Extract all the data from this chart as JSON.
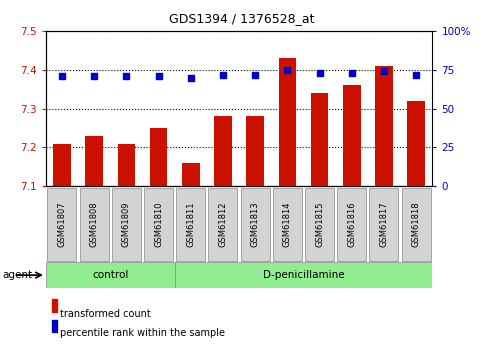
{
  "title": "GDS1394 / 1376528_at",
  "samples": [
    "GSM61807",
    "GSM61808",
    "GSM61809",
    "GSM61810",
    "GSM61811",
    "GSM61812",
    "GSM61813",
    "GSM61814",
    "GSM61815",
    "GSM61816",
    "GSM61817",
    "GSM61818"
  ],
  "bar_values": [
    7.21,
    7.23,
    7.21,
    7.25,
    7.16,
    7.28,
    7.28,
    7.43,
    7.34,
    7.36,
    7.41,
    7.32
  ],
  "percentile_values": [
    71,
    71,
    71,
    71,
    70,
    72,
    72,
    75,
    73,
    73,
    74,
    72
  ],
  "bar_color": "#cc1100",
  "percentile_color": "#0000cc",
  "ylim_left": [
    7.1,
    7.5
  ],
  "ylim_right": [
    0,
    100
  ],
  "yticks_left": [
    7.1,
    7.2,
    7.3,
    7.4,
    7.5
  ],
  "yticks_right": [
    0,
    25,
    50,
    75,
    100
  ],
  "ytick_labels_right": [
    "0",
    "25",
    "50",
    "75",
    "100%"
  ],
  "control_samples": 4,
  "control_label": "control",
  "treatment_label": "D-penicillamine",
  "agent_label": "agent",
  "legend_bar_label": "transformed count",
  "legend_dot_label": "percentile rank within the sample",
  "tick_label_color_left": "#cc1100",
  "tick_label_color_right": "#0000cc",
  "control_bg": "#90ee90",
  "treatment_bg": "#90ee90",
  "sample_bg": "#d3d3d3"
}
